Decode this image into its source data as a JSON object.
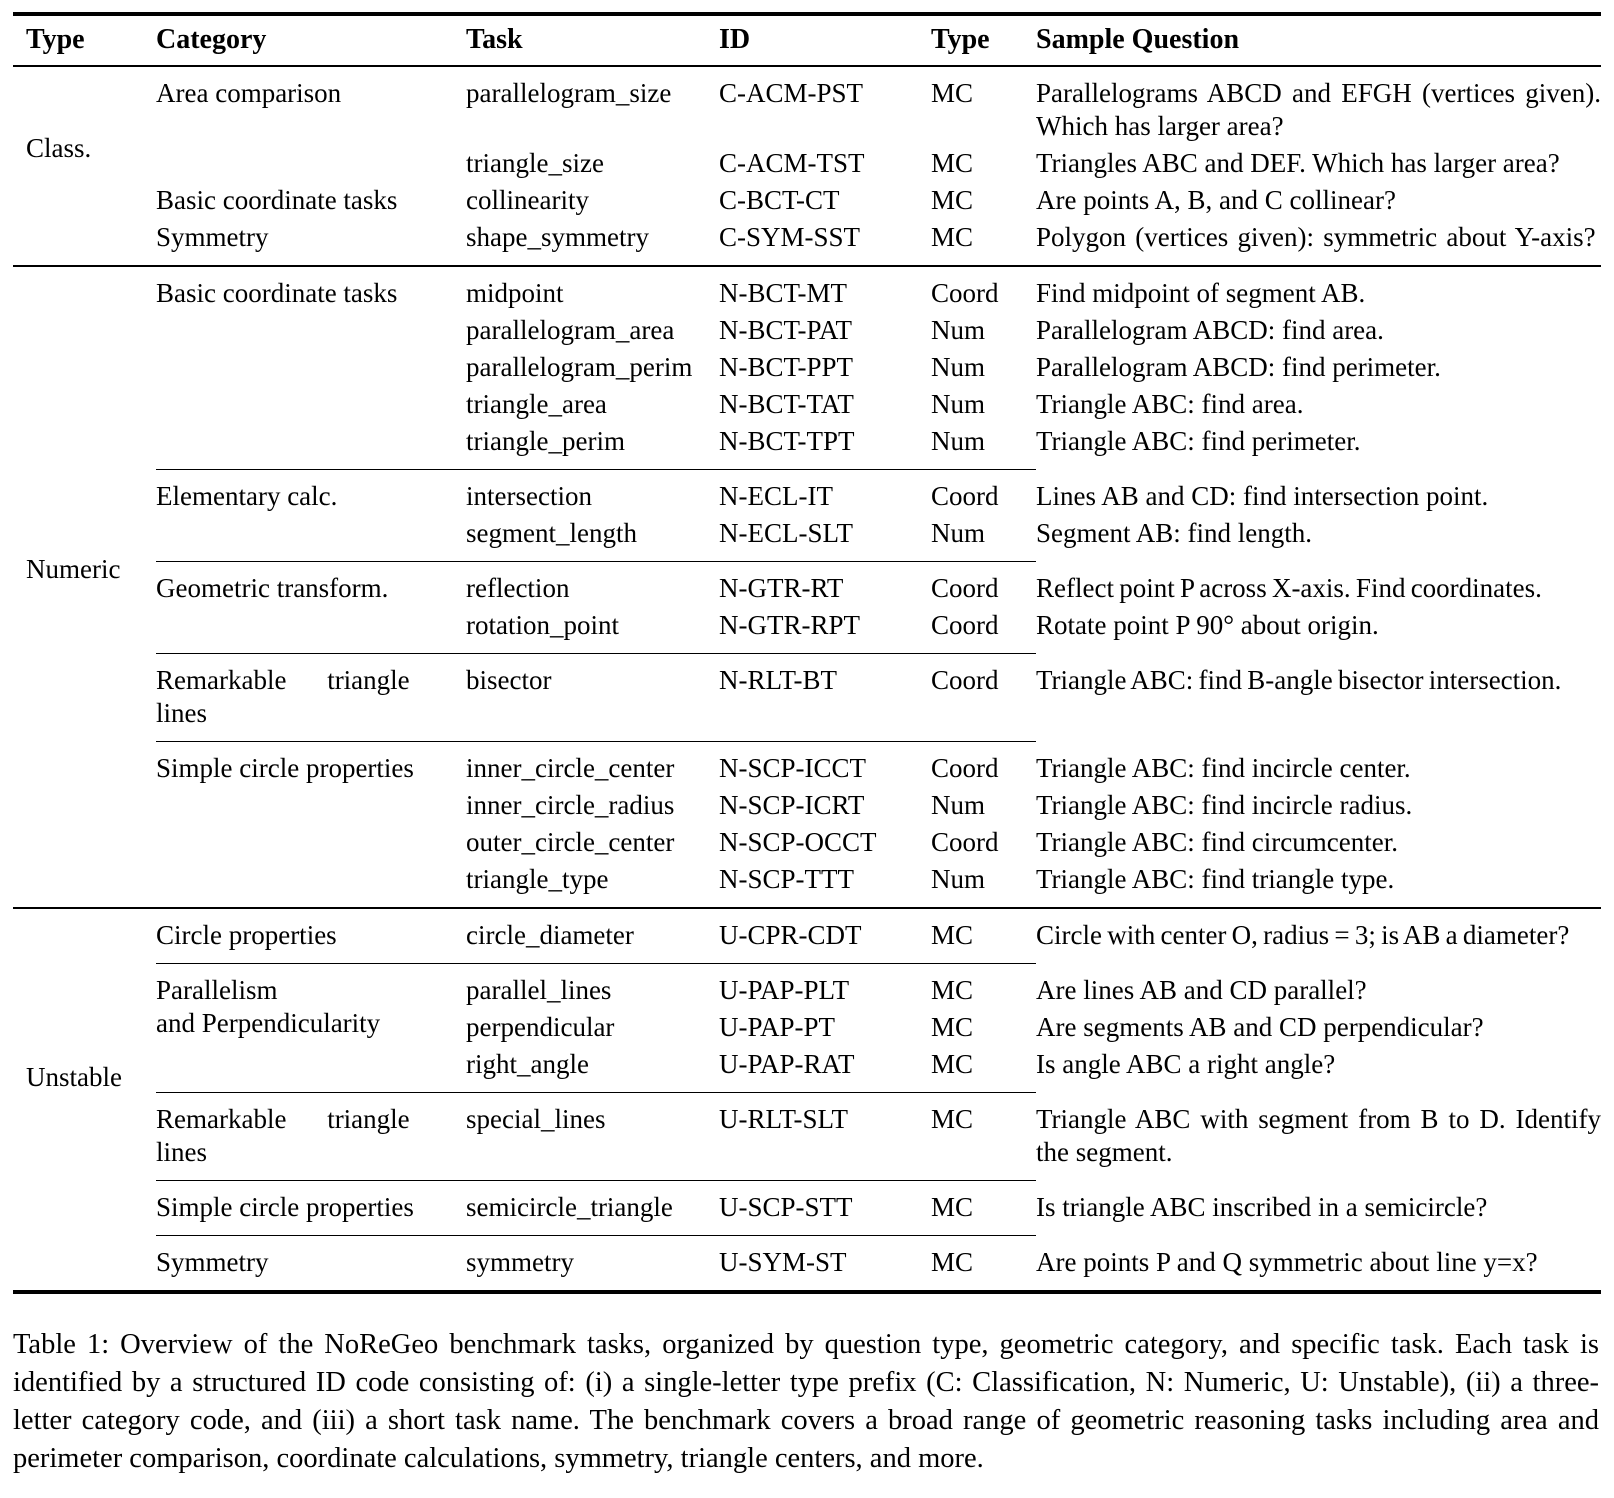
{
  "table": {
    "headers": [
      "Type",
      "Category",
      "Task",
      "ID",
      "Type",
      "Sample Question"
    ],
    "sections": [
      {
        "type": "Class.",
        "groups": [
          {
            "category": "Area comparison",
            "rows": [
              {
                "task": "parallelogram_size",
                "id": "C-ACM-PST",
                "qtype": "MC",
                "question": "Parallelograms ABCD and EFGH (vertices given). Which has larger area?"
              },
              {
                "task": "triangle_size",
                "id": "C-ACM-TST",
                "qtype": "MC",
                "question": "Triangles ABC and DEF. Which has larger area?"
              }
            ]
          },
          {
            "category": "Basic coordinate tasks",
            "rows": [
              {
                "task": "collinearity",
                "id": "C-BCT-CT",
                "qtype": "MC",
                "question": "Are points A, B, and C collinear?"
              }
            ]
          },
          {
            "category": "Symmetry",
            "rows": [
              {
                "task": "shape_symmetry",
                "id": "C-SYM-SST",
                "qtype": "MC",
                "question": "Polygon (vertices given): symmetric about Y-axis?"
              }
            ]
          }
        ]
      },
      {
        "type": "Numeric",
        "groups": [
          {
            "category": "Basic coordinate tasks",
            "rows": [
              {
                "task": "midpoint",
                "id": "N-BCT-MT",
                "qtype": "Coord",
                "question": "Find midpoint of segment AB."
              },
              {
                "task": "parallelogram_area",
                "id": "N-BCT-PAT",
                "qtype": "Num",
                "question": "Parallelogram ABCD: find area."
              },
              {
                "task": "parallelogram_perim",
                "id": "N-BCT-PPT",
                "qtype": "Num",
                "question": "Parallelogram ABCD: find perimeter."
              },
              {
                "task": "triangle_area",
                "id": "N-BCT-TAT",
                "qtype": "Num",
                "question": "Triangle ABC: find area."
              },
              {
                "task": "triangle_perim",
                "id": "N-BCT-TPT",
                "qtype": "Num",
                "question": "Triangle ABC: find perimeter."
              }
            ]
          },
          {
            "category": "Elementary calc.",
            "rows": [
              {
                "task": "intersection",
                "id": "N-ECL-IT",
                "qtype": "Coord",
                "question": "Lines AB and CD: find intersection point."
              },
              {
                "task": "segment_length",
                "id": "N-ECL-SLT",
                "qtype": "Num",
                "question": "Segment AB: find length."
              }
            ]
          },
          {
            "category": "Geometric transform.",
            "rows": [
              {
                "task": "reflection",
                "id": "N-GTR-RT",
                "qtype": "Coord",
                "question": "Reflect point P across X-axis. Find coordinates."
              },
              {
                "task": "rotation_point",
                "id": "N-GTR-RPT",
                "qtype": "Coord",
                "question": "Rotate point P 90° about origin."
              }
            ]
          },
          {
            "category": "Remarkable triangle\nlines",
            "rows": [
              {
                "task": "bisector",
                "id": "N-RLT-BT",
                "qtype": "Coord",
                "question": "Triangle ABC: find B-angle bisector intersection."
              }
            ]
          },
          {
            "category": "Simple circle properties",
            "rows": [
              {
                "task": "inner_circle_center",
                "id": "N-SCP-ICCT",
                "qtype": "Coord",
                "question": "Triangle ABC: find incircle center."
              },
              {
                "task": "inner_circle_radius",
                "id": "N-SCP-ICRT",
                "qtype": "Num",
                "question": "Triangle ABC: find incircle radius."
              },
              {
                "task": "outer_circle_center",
                "id": "N-SCP-OCCT",
                "qtype": "Coord",
                "question": "Triangle ABC: find circumcenter."
              },
              {
                "task": "triangle_type",
                "id": "N-SCP-TTT",
                "qtype": "Num",
                "question": "Triangle ABC: find triangle type."
              }
            ]
          }
        ]
      },
      {
        "type": "Unstable",
        "groups": [
          {
            "category": "Circle properties",
            "rows": [
              {
                "task": "circle_diameter",
                "id": "U-CPR-CDT",
                "qtype": "MC",
                "question": "Circle with center O, radius = 3; is AB a diameter?"
              }
            ]
          },
          {
            "category": "Parallelism\nand Perpendicularity",
            "rows": [
              {
                "task": "parallel_lines",
                "id": "U-PAP-PLT",
                "qtype": "MC",
                "question": "Are lines AB and CD parallel?"
              },
              {
                "task": "perpendicular",
                "id": "U-PAP-PT",
                "qtype": "MC",
                "question": "Are segments AB and CD perpendicular?"
              },
              {
                "task": "right_angle",
                "id": "U-PAP-RAT",
                "qtype": "MC",
                "question": "Is angle ABC a right angle?"
              }
            ]
          },
          {
            "category": "Remarkable triangle\nlines",
            "rows": [
              {
                "task": "special_lines",
                "id": "U-RLT-SLT",
                "qtype": "MC",
                "question": "Triangle ABC with segment from B to D. Identify the segment."
              }
            ]
          },
          {
            "category": "Simple circle properties",
            "rows": [
              {
                "task": "semicircle_triangle",
                "id": "U-SCP-STT",
                "qtype": "MC",
                "question": "Is triangle ABC inscribed in a semicircle?"
              }
            ]
          },
          {
            "category": "Symmetry",
            "rows": [
              {
                "task": "symmetry",
                "id": "U-SYM-ST",
                "qtype": "MC",
                "question": "Are points P and Q symmetric about line y=x?"
              }
            ]
          }
        ]
      }
    ]
  },
  "caption": {
    "text": "Table 1: Overview of the NoReGeo benchmark tasks, organized by question type, geometric category, and specific task. Each task is identified by a structured ID code consisting of: (i) a single-letter type prefix (C: Classification, N: Numeric, U: Unstable), (ii) a three-letter category code, and (iii) a short task name. The benchmark covers a broad range of geometric reasoning tasks including area and perimeter comparison, coordinate calculations, symmetry, triangle centers, and more."
  }
}
